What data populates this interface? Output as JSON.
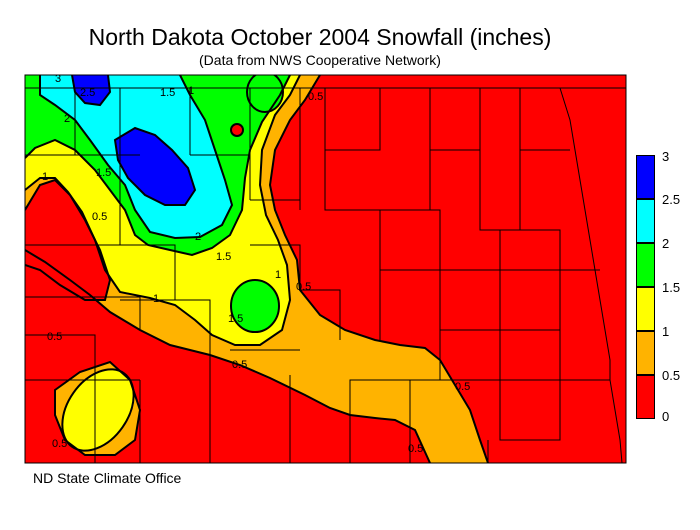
{
  "title": "North Dakota October 2004 Snowfall (inches)",
  "subtitle": "(Data from NWS Cooperative Network)",
  "credit": "ND State Climate Office",
  "legend": {
    "labels": [
      "3",
      "2.5",
      "2",
      "1.5",
      "1",
      "0.5",
      "0"
    ],
    "bins": [
      {
        "range": "2.5-3",
        "color": "#0000ff"
      },
      {
        "range": "2-2.5",
        "color": "#00ffff"
      },
      {
        "range": "1.5-2",
        "color": "#00ff00"
      },
      {
        "range": "1-1.5",
        "color": "#ffff00"
      },
      {
        "range": "0.5-1",
        "color": "#ffb300"
      },
      {
        "range": "0-0.5",
        "color": "#ff0000"
      }
    ]
  },
  "contour_labels": [
    "3",
    "2.5",
    "2",
    "1.5",
    "1",
    "0.5"
  ]
}
